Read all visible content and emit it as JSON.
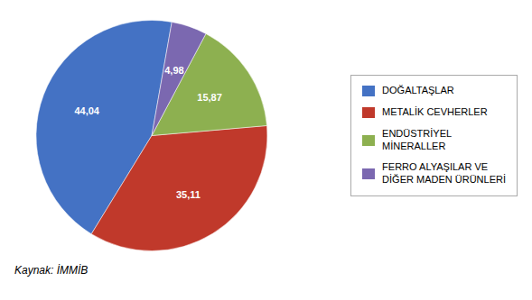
{
  "chart_data": {
    "type": "pie",
    "categories": [
      "DOĞALTAŞLAR",
      "METALİK CEVHERLER",
      "ENDÜSTRİYEL\nMİNERALLER",
      "FERRO ALYAŞILAR VE\nDİĞER MADEN ÜRÜNLERİ"
    ],
    "values": [
      44.04,
      35.11,
      15.87,
      4.98
    ],
    "value_labels": [
      "44,04",
      "35,11",
      "15,87",
      "4,98"
    ],
    "colors": [
      "#4472C4",
      "#C0392B",
      "#8DB050",
      "#7B68B0"
    ],
    "data_labels": true,
    "legend": "right",
    "annotations": [
      "Kaynak: İMMİB"
    ]
  }
}
